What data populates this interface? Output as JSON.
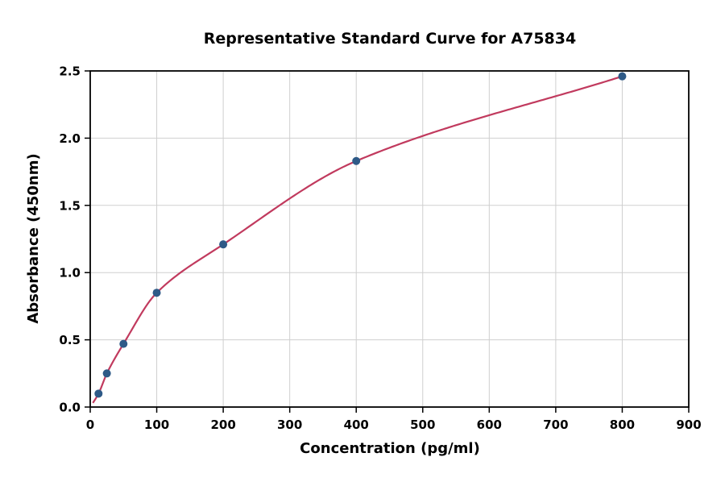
{
  "chart_data": {
    "type": "scatter",
    "title": "Representative Standard Curve for A75834",
    "xlabel": "Concentration (pg/ml)",
    "ylabel": "Absorbance (450nm)",
    "xlim": [
      0,
      900
    ],
    "ylim": [
      0,
      2.5
    ],
    "x_ticks": [
      0,
      100,
      200,
      300,
      400,
      500,
      600,
      700,
      800,
      900
    ],
    "y_ticks": [
      0.0,
      0.5,
      1.0,
      1.5,
      2.0,
      2.5
    ],
    "grid": true,
    "legend_position": "none",
    "points": {
      "x": [
        12.5,
        25,
        50,
        100,
        200,
        400,
        800
      ],
      "y": [
        0.1,
        0.25,
        0.47,
        0.85,
        1.21,
        1.83,
        2.46
      ]
    },
    "curve_anchor": {
      "x": [
        0,
        12.5,
        25,
        50,
        100,
        200,
        400,
        800
      ],
      "y": [
        0.0,
        0.1,
        0.25,
        0.47,
        0.85,
        1.21,
        1.83,
        2.46
      ]
    },
    "point_color": "#2e5a87",
    "line_color": "#c13a5e",
    "grid_color": "#cfcfcf",
    "axis_color": "#000000"
  }
}
